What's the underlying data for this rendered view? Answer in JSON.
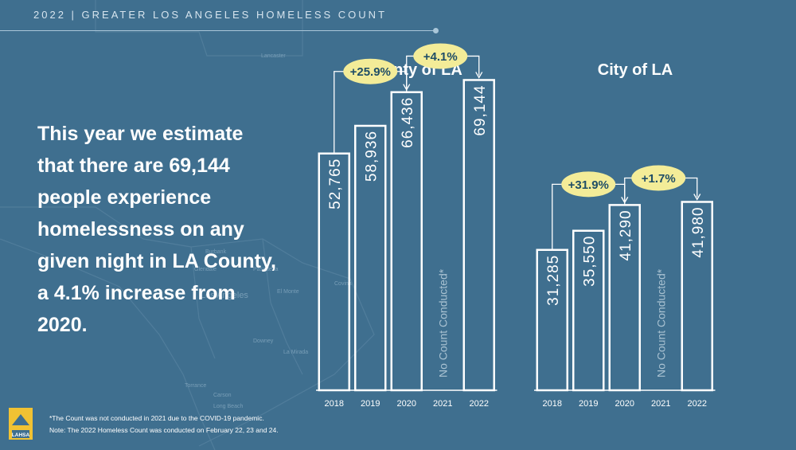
{
  "header": {
    "title": "2022 | GREATER LOS ANGELES HOMELESS COUNT"
  },
  "summary": {
    "text": "This year we estimate that there are 69,144 people experience homelessness on any given night in LA County, a 4.1% increase from 2020."
  },
  "footnotes": {
    "line1": "*The Count was not conducted in 2021 due to the COVID-19 pandemic.",
    "line2": "Note: The 2022 Homeless Count was conducted on February 22, 23 and 24."
  },
  "logo": {
    "text": "LAHSA"
  },
  "map_labels": [
    "Lancaster",
    "Burbank",
    "Glendale",
    "Pasadena",
    "Los Angeles",
    "El Monte",
    "Covina",
    "Downey",
    "La Mirada",
    "Torrance",
    "Long Beach",
    "Carson"
  ],
  "colors": {
    "background": "#3f6f8f",
    "bar_stroke": "#ffffff",
    "badge_fill": "#f3ec98",
    "badge_text": "#1f4d66",
    "muted_text": "#a9c2d2"
  },
  "chart_data": [
    {
      "type": "bar",
      "title": "County of LA",
      "categories": [
        "2018",
        "2019",
        "2020",
        "2021",
        "2022"
      ],
      "values": [
        52765,
        58936,
        66436,
        null,
        69144
      ],
      "value_labels": [
        "52,765",
        "58,936",
        "66,436",
        "",
        "69,144"
      ],
      "missing_label": "No Count Conducted*",
      "ylim": [
        0,
        71000
      ],
      "changes": [
        {
          "label": "+25.9%",
          "from": "2018",
          "to": "2020"
        },
        {
          "label": "+4.1%",
          "from": "2020",
          "to": "2022"
        }
      ]
    },
    {
      "type": "bar",
      "title": "City of LA",
      "categories": [
        "2018",
        "2019",
        "2020",
        "2021",
        "2022"
      ],
      "values": [
        31285,
        35550,
        41290,
        null,
        41980
      ],
      "value_labels": [
        "31,285",
        "35,550",
        "41,290",
        "",
        "41,980"
      ],
      "missing_label": "No Count Conducted*",
      "ylim": [
        0,
        71000
      ],
      "changes": [
        {
          "label": "+31.9%",
          "from": "2018",
          "to": "2020"
        },
        {
          "label": "+1.7%",
          "from": "2020",
          "to": "2022"
        }
      ]
    }
  ]
}
